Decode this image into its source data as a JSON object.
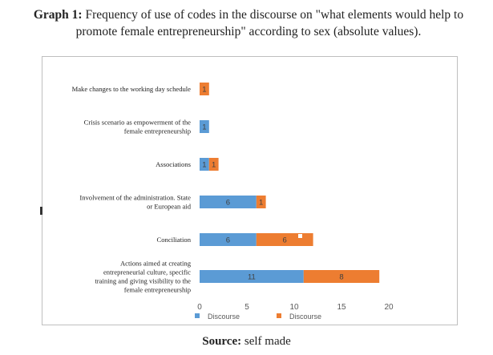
{
  "caption": {
    "label": "Graph 1:",
    "text": "Frequency of use of codes in the discourse on \"what elements would help to promote female entrepreneurship\" according to sex (absolute values)."
  },
  "source": {
    "label": "Source:",
    "text": "self made"
  },
  "chart_data": {
    "type": "bar",
    "orientation": "horizontal",
    "stacked": true,
    "title": "",
    "xlabel": "",
    "ylabel": "",
    "categories": [
      "Make changes to the working day schedule",
      "Crisis scenario as empowerment of the female entrepreneurship",
      "Associations",
      "Involvement of the administration. State or European aid",
      "Conciliation",
      "Actions aimed at creating entrepreneurial culture, specific training and giving visibility to the female entrepreneurship"
    ],
    "series": [
      {
        "name": "Discourse",
        "color": "#5b9bd5",
        "values": [
          0,
          1,
          1,
          6,
          6,
          11
        ]
      },
      {
        "name": "Discourse",
        "color": "#ed7d31",
        "values": [
          1,
          0,
          1,
          1,
          6,
          8
        ]
      }
    ],
    "xlim": [
      0,
      20
    ],
    "xticks": [
      0,
      5,
      10,
      15,
      20
    ],
    "grid": false,
    "legend_position": "bottom"
  }
}
